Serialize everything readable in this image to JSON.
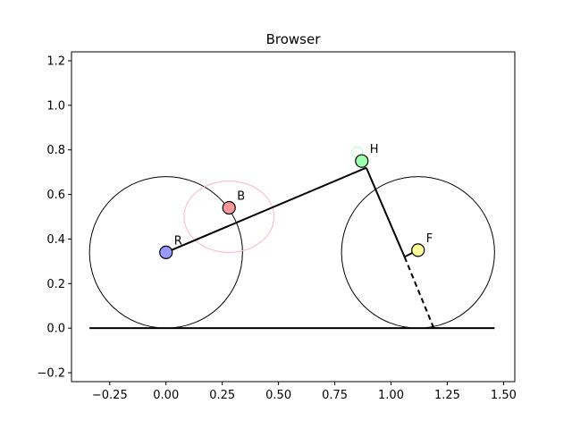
{
  "chart_data": {
    "type": "scatter",
    "title": "Browser",
    "xlabel": "",
    "ylabel": "",
    "xlim": [
      -0.42,
      1.55
    ],
    "ylim": [
      -0.24,
      1.24
    ],
    "grid": false,
    "x_ticks": [
      {
        "value": -0.25,
        "label": "−0.25"
      },
      {
        "value": 0.0,
        "label": "0.00"
      },
      {
        "value": 0.25,
        "label": "0.25"
      },
      {
        "value": 0.5,
        "label": "0.50"
      },
      {
        "value": 0.75,
        "label": "0.75"
      },
      {
        "value": 1.0,
        "label": "1.00"
      },
      {
        "value": 1.25,
        "label": "1.25"
      },
      {
        "value": 1.5,
        "label": "1.50"
      }
    ],
    "y_ticks": [
      {
        "value": -0.2,
        "label": "−0.2"
      },
      {
        "value": 0.0,
        "label": "0.0"
      },
      {
        "value": 0.2,
        "label": "0.2"
      },
      {
        "value": 0.4,
        "label": "0.4"
      },
      {
        "value": 0.6,
        "label": "0.6"
      },
      {
        "value": 0.8,
        "label": "0.8"
      },
      {
        "value": 1.0,
        "label": "1.0"
      },
      {
        "value": 1.2,
        "label": "1.2"
      }
    ],
    "ground": {
      "x": [
        -0.34,
        1.46
      ],
      "y": 0.0
    },
    "wheels": [
      {
        "name": "rear-wheel",
        "cx": 0.0,
        "cy": 0.34,
        "r": 0.34
      },
      {
        "name": "front-wheel",
        "cx": 1.12,
        "cy": 0.34,
        "r": 0.34
      }
    ],
    "ellipses": [
      {
        "name": "reach-ellipse",
        "cx": 0.28,
        "cy": 0.5,
        "rx": 0.2,
        "ry": 0.16,
        "color": "#ffb6c1"
      }
    ],
    "segments": [
      {
        "name": "frame-rear-to-head",
        "x1": 0.0,
        "y1": 0.34,
        "x2": 0.89,
        "y2": 0.72,
        "dashed": false
      },
      {
        "name": "fork-upper",
        "x1": 0.89,
        "y1": 0.72,
        "x2": 1.06,
        "y2": 0.32,
        "dashed": false
      },
      {
        "name": "fork-offset",
        "x1": 1.06,
        "y1": 0.32,
        "x2": 1.12,
        "y2": 0.35,
        "dashed": false
      },
      {
        "name": "steering-axis-extension",
        "x1": 1.06,
        "y1": 0.32,
        "x2": 1.19,
        "y2": 0.0,
        "dashed": true
      }
    ],
    "points": [
      {
        "label": "R",
        "x": 0.0,
        "y": 0.34,
        "color": "#9999ff"
      },
      {
        "label": "B",
        "x": 0.28,
        "y": 0.54,
        "color": "#ff9999"
      },
      {
        "label": "H",
        "x": 0.87,
        "y": 0.75,
        "color": "#99ffaa"
      },
      {
        "label": "F",
        "x": 1.12,
        "y": 0.35,
        "color": "#ffff99"
      }
    ],
    "ghost_point": {
      "x": 0.85,
      "y": 0.79,
      "color": "#aaffcc"
    }
  }
}
